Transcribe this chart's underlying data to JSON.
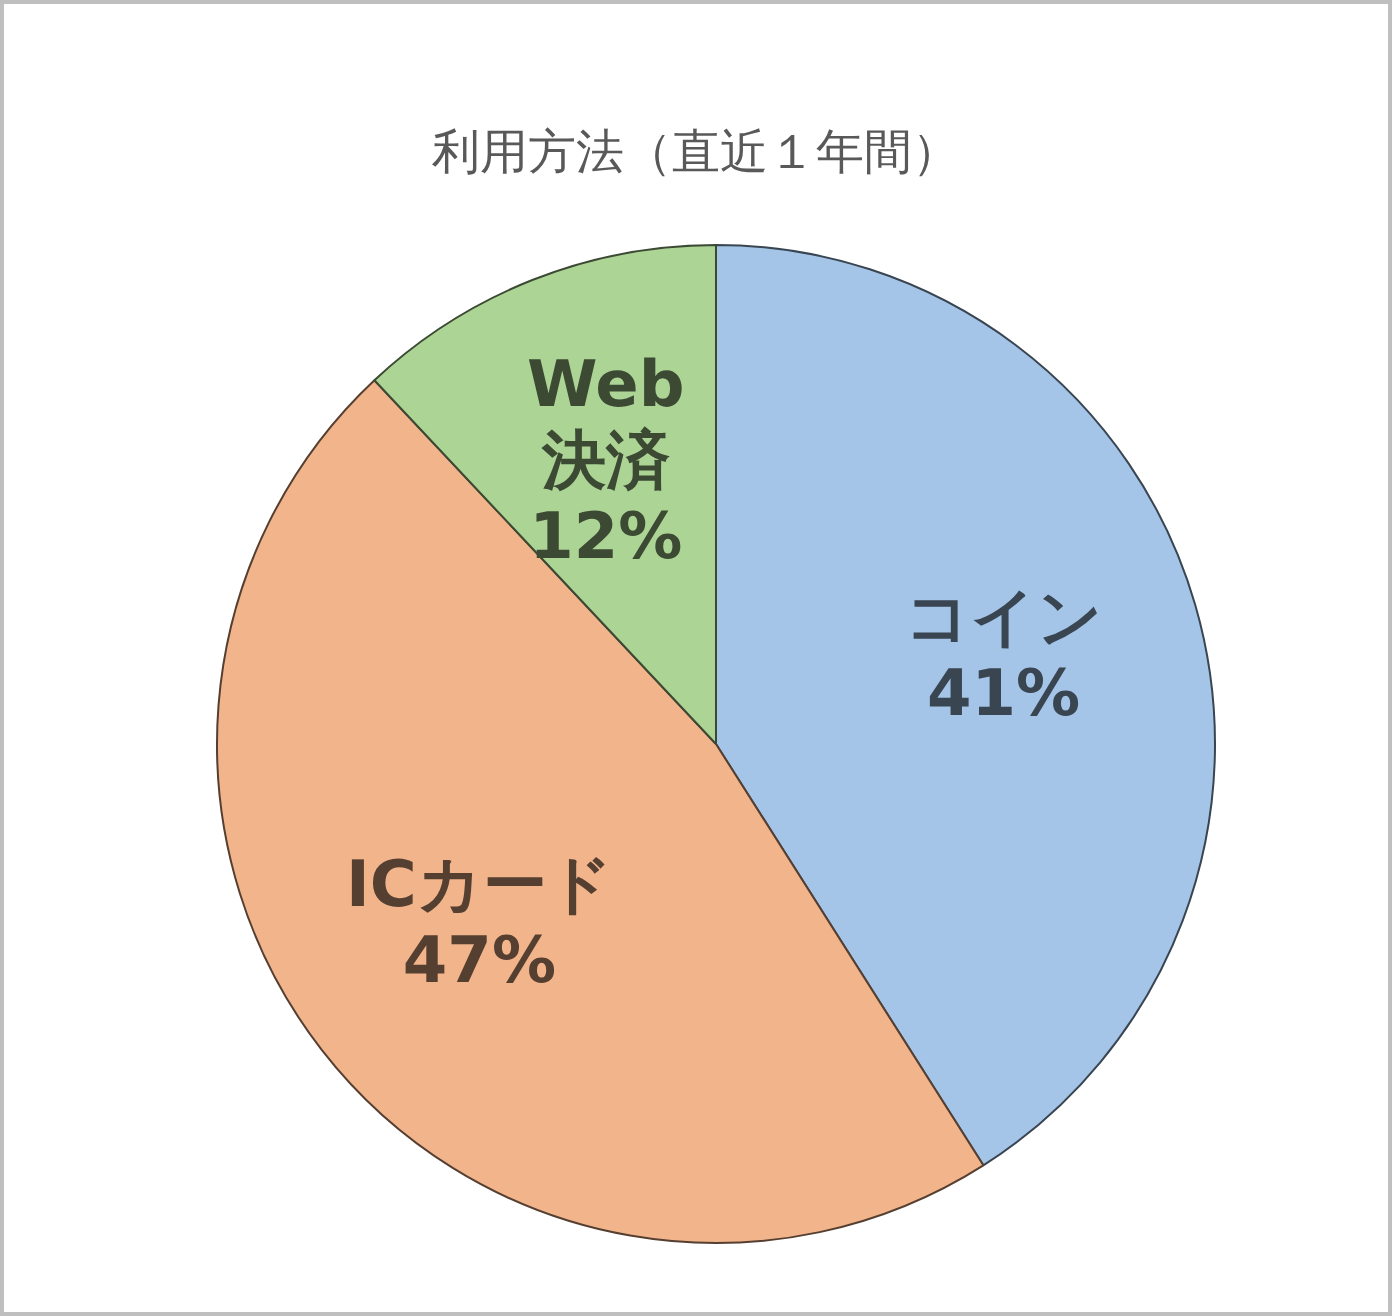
{
  "chart_data": {
    "type": "pie",
    "title": "利用方法（直近１年間）",
    "categories": [
      "コイン",
      "ICカード",
      "Web決済"
    ],
    "values": [
      41,
      47,
      12
    ],
    "value_labels": [
      "41%",
      "47%",
      "12%"
    ],
    "colors": [
      "#a4c5e8",
      "#f2b48b",
      "#acd495"
    ]
  }
}
